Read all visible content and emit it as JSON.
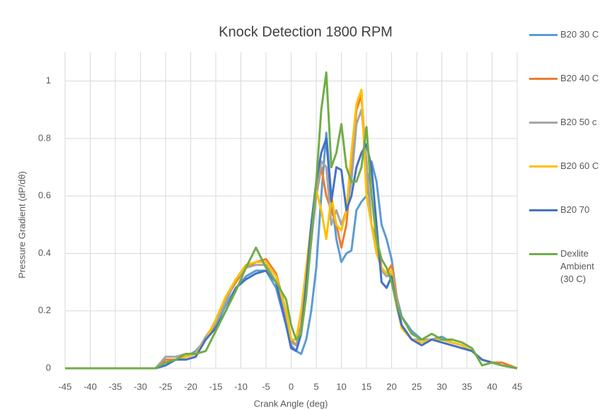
{
  "chart_data": {
    "type": "line",
    "title": "Knock Detection 1800 RPM",
    "x_label": "Crank Angle (deg)",
    "y_label": "Pressure Gradient (dP/dθ)",
    "x": [
      -45,
      -30,
      -27,
      -25,
      -23,
      -21,
      -19,
      -17,
      -15,
      -13,
      -11,
      -9,
      -7,
      -5,
      -3,
      -1,
      0,
      1,
      2,
      3,
      4,
      5,
      6,
      7,
      8,
      9,
      10,
      11,
      12,
      13,
      14,
      15,
      16,
      17,
      18,
      19,
      20,
      21,
      22,
      24,
      26,
      28,
      30,
      32,
      34,
      36,
      38,
      40,
      42,
      45
    ],
    "xlim": [
      -45,
      45
    ],
    "xticks": [
      -45,
      -40,
      -35,
      -30,
      -25,
      -20,
      -15,
      -10,
      -5,
      0,
      5,
      10,
      15,
      20,
      25,
      30,
      35,
      40,
      45
    ],
    "ylim": [
      0,
      1.1
    ],
    "yticks": [
      0,
      0.2,
      0.4,
      0.6,
      0.8,
      1
    ],
    "grid": true,
    "legend": "right",
    "series": [
      {
        "name": "B20 30 C",
        "color": "#5b9bd5",
        "values": [
          0,
          0,
          0,
          0.02,
          0.03,
          0.04,
          0.06,
          0.1,
          0.15,
          0.22,
          0.28,
          0.32,
          0.34,
          0.34,
          0.28,
          0.15,
          0.08,
          0.06,
          0.05,
          0.1,
          0.2,
          0.35,
          0.6,
          0.82,
          0.6,
          0.45,
          0.37,
          0.4,
          0.41,
          0.55,
          0.58,
          0.6,
          0.72,
          0.65,
          0.5,
          0.45,
          0.38,
          0.25,
          0.18,
          0.13,
          0.1,
          0.1,
          0.11,
          0.09,
          0.08,
          0.06,
          0.03,
          0.02,
          0.01,
          0
        ]
      },
      {
        "name": "B20 40 C",
        "color": "#ed7d31",
        "values": [
          0,
          0,
          0,
          0.03,
          0.03,
          0.04,
          0.05,
          0.1,
          0.16,
          0.24,
          0.3,
          0.35,
          0.37,
          0.38,
          0.33,
          0.2,
          0.1,
          0.08,
          0.15,
          0.3,
          0.45,
          0.6,
          0.7,
          0.6,
          0.55,
          0.5,
          0.42,
          0.5,
          0.7,
          0.9,
          0.95,
          0.7,
          0.5,
          0.45,
          0.35,
          0.33,
          0.36,
          0.25,
          0.15,
          0.1,
          0.1,
          0.1,
          0.1,
          0.09,
          0.08,
          0.06,
          0.03,
          0.02,
          0.02,
          0
        ]
      },
      {
        "name": "B20 50 c",
        "color": "#a5a5a5",
        "values": [
          0,
          0,
          0,
          0.04,
          0.04,
          0.05,
          0.05,
          0.11,
          0.16,
          0.23,
          0.31,
          0.35,
          0.36,
          0.36,
          0.3,
          0.18,
          0.09,
          0.08,
          0.14,
          0.28,
          0.44,
          0.6,
          0.72,
          0.7,
          0.5,
          0.55,
          0.5,
          0.55,
          0.65,
          0.85,
          0.9,
          0.72,
          0.5,
          0.42,
          0.34,
          0.32,
          0.33,
          0.24,
          0.15,
          0.1,
          0.1,
          0.1,
          0.1,
          0.09,
          0.08,
          0.06,
          0.03,
          0.02,
          0.01,
          0
        ]
      },
      {
        "name": "B20 60 C",
        "color": "#ffc000",
        "values": [
          0,
          0,
          0,
          0.02,
          0.03,
          0.04,
          0.05,
          0.1,
          0.17,
          0.25,
          0.31,
          0.36,
          0.37,
          0.37,
          0.32,
          0.2,
          0.1,
          0.1,
          0.2,
          0.35,
          0.5,
          0.62,
          0.55,
          0.45,
          0.6,
          0.5,
          0.48,
          0.55,
          0.75,
          0.92,
          0.97,
          0.6,
          0.5,
          0.4,
          0.35,
          0.33,
          0.34,
          0.22,
          0.14,
          0.1,
          0.09,
          0.1,
          0.1,
          0.09,
          0.08,
          0.06,
          0.03,
          0.02,
          0.01,
          0
        ]
      },
      {
        "name": "B20 70",
        "color": "#4472c4",
        "values": [
          0,
          0,
          0,
          0.01,
          0.03,
          0.03,
          0.04,
          0.1,
          0.14,
          0.2,
          0.28,
          0.31,
          0.33,
          0.34,
          0.3,
          0.15,
          0.07,
          0.06,
          0.12,
          0.3,
          0.5,
          0.65,
          0.75,
          0.8,
          0.58,
          0.7,
          0.69,
          0.55,
          0.6,
          0.7,
          0.75,
          0.78,
          0.7,
          0.5,
          0.3,
          0.28,
          0.32,
          0.22,
          0.15,
          0.1,
          0.08,
          0.1,
          0.09,
          0.08,
          0.07,
          0.06,
          0.03,
          0.02,
          0.01,
          0
        ]
      },
      {
        "name": "Dexlite Ambient (30 C)",
        "color": "#70ad47",
        "values": [
          0,
          0,
          0,
          0.02,
          0.03,
          0.05,
          0.05,
          0.06,
          0.13,
          0.2,
          0.27,
          0.35,
          0.42,
          0.35,
          0.3,
          0.24,
          0.15,
          0.1,
          0.12,
          0.25,
          0.45,
          0.65,
          0.9,
          1.03,
          0.7,
          0.75,
          0.85,
          0.7,
          0.65,
          0.65,
          0.7,
          0.84,
          0.6,
          0.45,
          0.38,
          0.35,
          0.3,
          0.22,
          0.18,
          0.12,
          0.1,
          0.12,
          0.1,
          0.1,
          0.09,
          0.07,
          0.01,
          0.02,
          0.01,
          0
        ]
      }
    ]
  }
}
